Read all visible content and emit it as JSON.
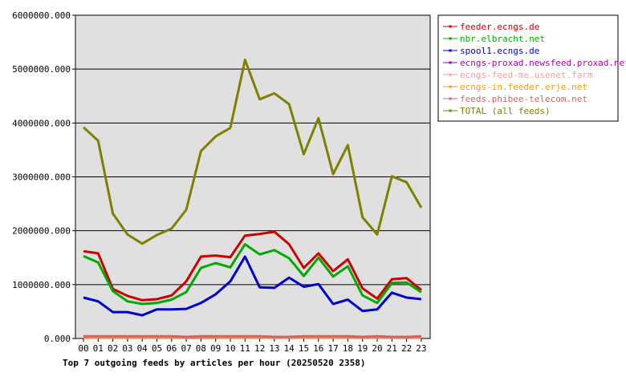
{
  "chart_data": {
    "type": "line",
    "title": "Top 7 outgoing feeds by articles per hour (20250520 2358)",
    "xlabel": "",
    "ylabel": "",
    "categories": [
      "00",
      "01",
      "02",
      "03",
      "04",
      "05",
      "06",
      "07",
      "08",
      "09",
      "10",
      "11",
      "12",
      "13",
      "14",
      "15",
      "16",
      "17",
      "18",
      "19",
      "20",
      "21",
      "22",
      "23"
    ],
    "ylim": [
      0,
      6000000
    ],
    "yticks": [
      "0.000",
      "1000000.000",
      "2000000.000",
      "3000000.000",
      "4000000.000",
      "5000000.000",
      "6000000.000"
    ],
    "grid": true,
    "legend_position": "right",
    "series": [
      {
        "name": "feeder.ecngs.de",
        "color": "#cc0000",
        "values": [
          1620000,
          1580000,
          920000,
          790000,
          710000,
          730000,
          800000,
          1060000,
          1520000,
          1540000,
          1510000,
          1910000,
          1940000,
          1980000,
          1750000,
          1310000,
          1580000,
          1250000,
          1470000,
          930000,
          740000,
          1100000,
          1120000,
          900000
        ]
      },
      {
        "name": "nbr.elbracht.net",
        "color": "#00aa00",
        "values": [
          1530000,
          1410000,
          880000,
          690000,
          640000,
          660000,
          720000,
          860000,
          1310000,
          1400000,
          1320000,
          1750000,
          1560000,
          1640000,
          1490000,
          1160000,
          1500000,
          1150000,
          1340000,
          800000,
          660000,
          1030000,
          1040000,
          860000
        ]
      },
      {
        "name": "spool1.ecngs.de",
        "color": "#0000cc",
        "values": [
          760000,
          690000,
          490000,
          490000,
          430000,
          540000,
          540000,
          550000,
          660000,
          820000,
          1060000,
          1520000,
          950000,
          940000,
          1130000,
          960000,
          1010000,
          640000,
          720000,
          510000,
          540000,
          850000,
          760000,
          730000
        ]
      },
      {
        "name": "ecngs-proxad.newsfeed.proxad.net",
        "color": "#aa00aa",
        "values": [
          30000,
          30000,
          30000,
          30000,
          30000,
          30000,
          30000,
          20000,
          30000,
          30000,
          30000,
          30000,
          30000,
          20000,
          20000,
          30000,
          30000,
          30000,
          30000,
          20000,
          30000,
          20000,
          20000,
          30000
        ]
      },
      {
        "name": "ecngs-feed-me.usenet.farm",
        "color": "#ff9999",
        "values": [
          20000,
          20000,
          20000,
          20000,
          20000,
          20000,
          20000,
          20000,
          30000,
          20000,
          20000,
          20000,
          20000,
          20000,
          20000,
          20000,
          20000,
          20000,
          20000,
          20000,
          20000,
          20000,
          20000,
          20000
        ]
      },
      {
        "name": "ecngs-in.feeder.erje.net",
        "color": "#ff9900",
        "values": [
          20000,
          20000,
          20000,
          20000,
          20000,
          20000,
          20000,
          20000,
          20000,
          20000,
          20000,
          20000,
          20000,
          20000,
          20000,
          20000,
          20000,
          20000,
          20000,
          20000,
          20000,
          20000,
          20000,
          20000
        ]
      },
      {
        "name": "feeds.phibee-telecom.net",
        "color": "#cc6666",
        "values": [
          40000,
          40000,
          40000,
          40000,
          40000,
          40000,
          40000,
          30000,
          40000,
          40000,
          40000,
          40000,
          40000,
          30000,
          30000,
          40000,
          40000,
          40000,
          40000,
          30000,
          40000,
          30000,
          30000,
          40000
        ]
      },
      {
        "name": "TOTAL (all feeds)",
        "color": "#808000",
        "values": [
          3920000,
          3670000,
          2320000,
          1930000,
          1760000,
          1920000,
          2040000,
          2390000,
          3480000,
          3750000,
          3910000,
          5170000,
          4440000,
          4550000,
          4350000,
          3420000,
          4090000,
          3050000,
          3590000,
          2250000,
          1930000,
          3010000,
          2900000,
          2430000
        ]
      }
    ]
  }
}
